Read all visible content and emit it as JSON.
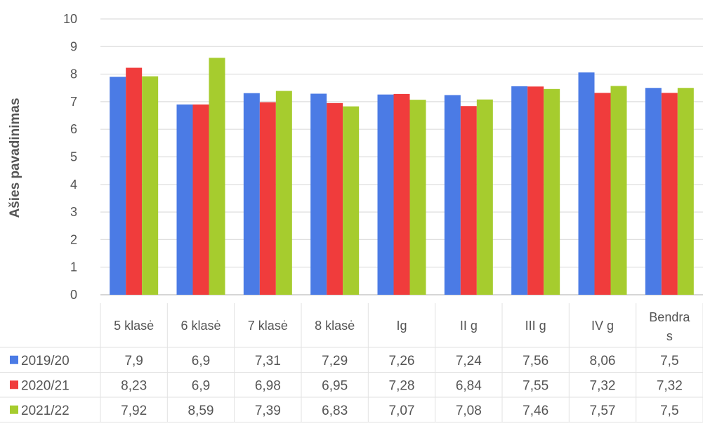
{
  "chart_data": {
    "type": "bar",
    "title": "",
    "xlabel": "",
    "ylabel": "Ašies pavadinimas",
    "ylim": [
      0,
      10
    ],
    "yticks": [
      0,
      1,
      2,
      3,
      4,
      5,
      6,
      7,
      8,
      9,
      10
    ],
    "grid": true,
    "legend_position": "data-table-left",
    "categories": [
      "5 klasė",
      "6 klasė",
      "7 klasė",
      "8 klasė",
      "Ig",
      "II g",
      "III g",
      "IV g",
      "Bendras"
    ],
    "category_lines": [
      [
        "5 klasė"
      ],
      [
        "6 klasė"
      ],
      [
        "7 klasė"
      ],
      [
        "8 klasė"
      ],
      [
        "Ig"
      ],
      [
        "II g"
      ],
      [
        "III g"
      ],
      [
        "IV g"
      ],
      [
        "Bendra",
        "s"
      ]
    ],
    "series": [
      {
        "name": "2019/20",
        "color": "#4b7be5",
        "values": [
          7.9,
          6.9,
          7.31,
          7.29,
          7.26,
          7.24,
          7.56,
          8.06,
          7.5
        ],
        "labels": [
          "7,9",
          "6,9",
          "7,31",
          "7,29",
          "7,26",
          "7,24",
          "7,56",
          "8,06",
          "7,5"
        ]
      },
      {
        "name": "2020/21",
        "color": "#f03c3c",
        "values": [
          8.23,
          6.9,
          6.98,
          6.95,
          7.28,
          6.84,
          7.55,
          7.32,
          7.32
        ],
        "labels": [
          "8,23",
          "6,9",
          "6,98",
          "6,95",
          "7,28",
          "6,84",
          "7,55",
          "7,32",
          "7,32"
        ]
      },
      {
        "name": "2021/22",
        "color": "#a6cc2e",
        "values": [
          7.92,
          8.59,
          7.39,
          6.83,
          7.07,
          7.08,
          7.46,
          7.57,
          7.5
        ],
        "labels": [
          "7,92",
          "8,59",
          "7,39",
          "6,83",
          "7,07",
          "7,08",
          "7,46",
          "7,57",
          "7,5"
        ]
      }
    ]
  }
}
